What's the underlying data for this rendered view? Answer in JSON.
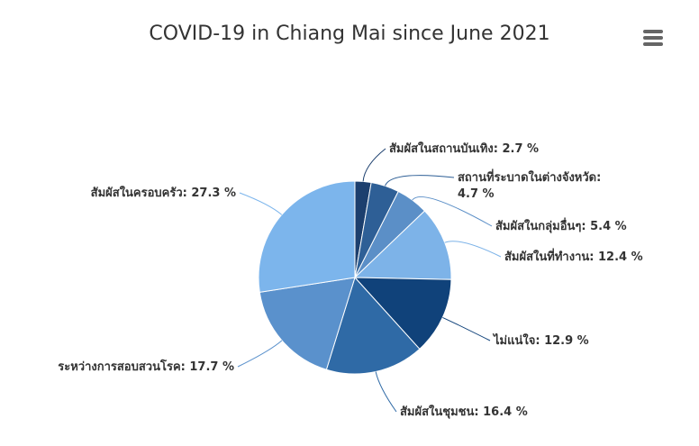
{
  "chart_data": {
    "type": "pie",
    "title": "COVID-19 in Chiang Mai since June 2021",
    "values": [
      2.7,
      4.7,
      5.4,
      12.4,
      12.9,
      16.4,
      17.7,
      27.3
    ],
    "value_labels": [
      "สัมผัสในสถานบันเทิง: 2.7 %",
      "สถานที่ระบาดในต่างจังหวัด:\n4.7 %",
      "สัมผัสในกลุ่มอื่นๆ: 5.4 %",
      "สัมผัสในที่ทำงาน: 12.4 %",
      "ไม่แน่ใจ: 12.9 %",
      "สัมผัสในชุมชน: 16.4 %",
      "ระหว่างการสอบสวนโรค: 17.7 %",
      "สัมผัสในครอบครัว: 27.3 %"
    ],
    "colors": [
      "#1c3f6e",
      "#2e5f96",
      "#5b8fc7",
      "#7db3e8",
      "#10427a",
      "#2f6aa6",
      "#5a91cc",
      "#7cb5ec"
    ]
  }
}
